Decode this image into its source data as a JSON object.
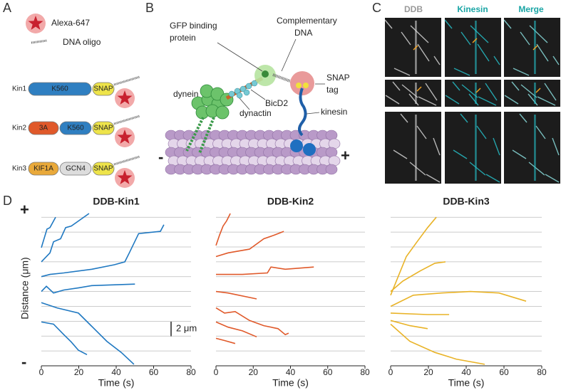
{
  "panel_labels": [
    "A",
    "B",
    "C",
    "D"
  ],
  "panel_a": {
    "fluorophore": "Alexa-647",
    "oligo": "DNA oligo",
    "constructs": [
      {
        "name": "Kin1",
        "domains": [
          "K560",
          "SNAP"
        ]
      },
      {
        "name": "Kin2",
        "domains": [
          "3A",
          "K560",
          "SNAP"
        ]
      },
      {
        "name": "Kin3",
        "domains": [
          "KIF1A",
          "GCN4",
          "SNAP"
        ]
      }
    ]
  },
  "panel_b": {
    "gfp_binder": [
      "GFP binding",
      "protein"
    ],
    "complementary": [
      "Complementary",
      "DNA"
    ],
    "dynein": "dynein",
    "snap_tag": [
      "SNAP",
      "tag"
    ],
    "bicd2": "BicD2",
    "dynactin": "dynactin",
    "kinesin": "kinesin",
    "minus_end": "-",
    "plus_end": "+"
  },
  "panel_c": {
    "channels": [
      "DDB",
      "Kinesin",
      "Merge"
    ]
  },
  "panel_d": {
    "y_label": "Distance (μm)",
    "plus_end": "+",
    "minus_end": "-",
    "scale_bar": "2 μm"
  },
  "chart_data": [
    {
      "type": "line",
      "title": "DDB-Kin1",
      "x_label": "Time (s)",
      "xlim": [
        0,
        80
      ],
      "xticks": [
        0,
        20,
        40,
        60,
        80
      ],
      "ylim": [
        0,
        20.5
      ],
      "guides": [
        2,
        4,
        6,
        8,
        10,
        12,
        14,
        16,
        18,
        20
      ],
      "series": [
        {
          "color": "#1f78c1",
          "x": [
            0,
            3,
            4.6,
            7.6
          ],
          "values": [
            15.9,
            18.4,
            18.6,
            20
          ]
        },
        {
          "color": "#1f78c1",
          "x": [
            0,
            4.6,
            6.5,
            10.3,
            13,
            16,
            21,
            25.5
          ],
          "values": [
            14,
            15.2,
            16.7,
            17.1,
            18.6,
            18.8,
            19.7,
            20.5
          ]
        },
        {
          "color": "#1f78c1",
          "x": [
            0,
            4.6,
            12,
            27,
            39,
            44.6,
            47,
            52,
            63.6,
            65.5
          ],
          "values": [
            12,
            12.3,
            12.5,
            13,
            13.6,
            14,
            15.2,
            17.8,
            18.1,
            19
          ]
        },
        {
          "color": "#1f78c1",
          "x": [
            0,
            2.7,
            6.5,
            12,
            20,
            27,
            50
          ],
          "values": [
            10,
            10.7,
            9.8,
            10.2,
            10.5,
            10.8,
            11
          ]
        },
        {
          "color": "#1f78c1",
          "x": [
            0,
            8.4,
            19.8,
            27.4,
            35,
            42.7,
            49.5
          ],
          "values": [
            8.5,
            7.8,
            7.1,
            5.2,
            3.3,
            1.8,
            0.2
          ]
        },
        {
          "color": "#1f78c1",
          "x": [
            0,
            6.5,
            12,
            16,
            19.8,
            24.4
          ],
          "values": [
            5.9,
            5.6,
            4.2,
            3.2,
            2.1,
            1.5
          ]
        }
      ]
    },
    {
      "type": "line",
      "title": "DDB-Kin2",
      "x_label": "Time (s)",
      "xlim": [
        0,
        80
      ],
      "xticks": [
        0,
        20,
        40,
        60,
        80
      ],
      "ylim": [
        0,
        20.5
      ],
      "guides": [
        2,
        4,
        6,
        8,
        10,
        12,
        14,
        16,
        18,
        20
      ],
      "series": [
        {
          "color": "#e0592a",
          "x": [
            0,
            1.9,
            3.8,
            5.7,
            7.7
          ],
          "values": [
            16.2,
            17.6,
            18.8,
            19.5,
            20.5
          ]
        },
        {
          "color": "#e0592a",
          "x": [
            0,
            6.5,
            18,
            25.7,
            31.4,
            36.4
          ],
          "values": [
            14.7,
            15.2,
            15.7,
            17.1,
            17.6,
            18.1
          ]
        },
        {
          "color": "#e0592a",
          "x": [
            0,
            14.2,
            27.6,
            29.5,
            37.2,
            52.5
          ],
          "values": [
            12.3,
            12.3,
            12.5,
            13.3,
            13,
            13.3
          ]
        },
        {
          "color": "#e0592a",
          "x": [
            0,
            6.5,
            21.8
          ],
          "values": [
            10,
            9.8,
            9
          ]
        },
        {
          "color": "#e0592a",
          "x": [
            0,
            4.6,
            10.3,
            18,
            25.7,
            33.3,
            37.2,
            39
          ],
          "values": [
            7.8,
            7.1,
            7.3,
            6.1,
            5.4,
            5,
            4.2,
            4.4
          ]
        },
        {
          "color": "#e0592a",
          "x": [
            0,
            6.5,
            14.2,
            21.8
          ],
          "values": [
            5.9,
            5.2,
            4.7,
            3.9
          ]
        },
        {
          "color": "#e0592a",
          "x": [
            0,
            4.6,
            10.3
          ],
          "values": [
            3.7,
            3.4,
            3
          ]
        }
      ]
    },
    {
      "type": "line",
      "title": "DDB-Kin3",
      "x_label": "Time (s)",
      "xlim": [
        0,
        80
      ],
      "xticks": [
        0,
        20,
        40,
        60,
        80
      ],
      "ylim": [
        0,
        20.5
      ],
      "guides": [
        2,
        4,
        6,
        8,
        10,
        12,
        14,
        16,
        18,
        20
      ],
      "series": [
        {
          "color": "#e9b327",
          "x": [
            0,
            3.8,
            8.3,
            14,
            19.6,
            24.2
          ],
          "values": [
            9.5,
            11.9,
            14.7,
            16.7,
            18.6,
            20
          ]
        },
        {
          "color": "#e9b327",
          "x": [
            0,
            6.4,
            15.8,
            23.4,
            29
          ],
          "values": [
            10,
            11.4,
            12.8,
            13.8,
            14
          ]
        },
        {
          "color": "#e9b327",
          "x": [
            0,
            12,
            27,
            42.3,
            57.4,
            71.7
          ],
          "values": [
            8,
            9.5,
            9.8,
            10,
            9.8,
            8.7
          ]
        },
        {
          "color": "#e9b327",
          "x": [
            0,
            19.6,
            31
          ],
          "values": [
            7.1,
            6.9,
            6.9
          ]
        },
        {
          "color": "#e9b327",
          "x": [
            0,
            10.2,
            19.6
          ],
          "values": [
            6.1,
            5.4,
            5
          ]
        },
        {
          "color": "#e9b327",
          "x": [
            0,
            10.2,
            23.4,
            34.7,
            49.8
          ],
          "values": [
            5.6,
            3.3,
            1.8,
            0.9,
            0.2
          ]
        }
      ]
    }
  ]
}
